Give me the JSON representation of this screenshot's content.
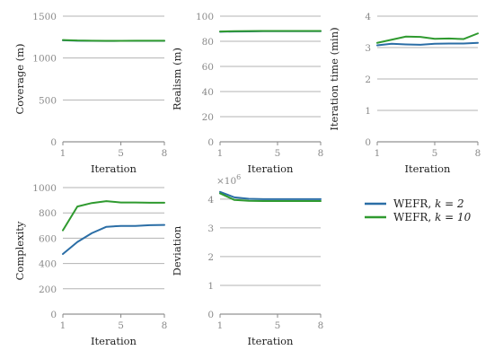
{
  "legend": {
    "entries": [
      {
        "label": "WEFR, ",
        "k_expr": "k = 2",
        "color": "#2b6ea6"
      },
      {
        "label": "WEFR, ",
        "k_expr": "k = 10",
        "color": "#2f9a2f"
      }
    ],
    "placement": "right of bottom-middle panel"
  },
  "chart_data": [
    {
      "type": "line",
      "ylabel": "Coverage (m)",
      "xlabel": "Iteration",
      "xlim": [
        1,
        8
      ],
      "xticks": [
        1,
        5,
        8
      ],
      "ylim": [
        0,
        1500
      ],
      "yticks": [
        0,
        500,
        1000,
        1500
      ],
      "grid": "horizontal",
      "x": [
        1,
        2,
        3,
        4,
        5,
        6,
        7,
        8
      ],
      "series": [
        {
          "name": "WEFR, k = 2",
          "color": "#2b6ea6",
          "values": [
            1212,
            1207,
            1205,
            1204,
            1205,
            1206,
            1205,
            1205
          ]
        },
        {
          "name": "WEFR, k = 10",
          "color": "#2f9a2f",
          "values": [
            1215,
            1209,
            1207,
            1206,
            1206,
            1207,
            1207,
            1207
          ]
        }
      ]
    },
    {
      "type": "line",
      "ylabel": "Realism (m)",
      "xlabel": "Iteration",
      "xlim": [
        1,
        8
      ],
      "xticks": [
        1,
        5,
        8
      ],
      "ylim": [
        0,
        100
      ],
      "yticks": [
        0,
        20,
        40,
        60,
        80,
        100
      ],
      "grid": "horizontal",
      "x": [
        1,
        2,
        3,
        4,
        5,
        6,
        7,
        8
      ],
      "series": [
        {
          "name": "WEFR, k = 2",
          "color": "#2b6ea6",
          "values": [
            87.6,
            87.8,
            87.9,
            88.0,
            88.0,
            88.0,
            88.0,
            88.0
          ]
        },
        {
          "name": "WEFR, k = 10",
          "color": "#2f9a2f",
          "values": [
            87.8,
            88.0,
            88.1,
            88.2,
            88.2,
            88.2,
            88.2,
            88.2
          ]
        }
      ]
    },
    {
      "type": "line",
      "ylabel": "Iteration time (min)",
      "xlabel": "Iteration",
      "xlim": [
        1,
        8
      ],
      "xticks": [
        1,
        5,
        8
      ],
      "ylim": [
        0,
        4
      ],
      "yticks": [
        0,
        1,
        2,
        3,
        4
      ],
      "grid": "horizontal",
      "x": [
        1,
        2,
        3,
        4,
        5,
        6,
        7,
        8
      ],
      "series": [
        {
          "name": "WEFR, k = 2",
          "color": "#2b6ea6",
          "values": [
            3.07,
            3.12,
            3.1,
            3.09,
            3.12,
            3.13,
            3.13,
            3.15
          ]
        },
        {
          "name": "WEFR, k = 10",
          "color": "#2f9a2f",
          "values": [
            3.15,
            3.25,
            3.35,
            3.34,
            3.28,
            3.29,
            3.27,
            3.45
          ]
        }
      ]
    },
    {
      "type": "line",
      "ylabel": "Complexity",
      "xlabel": "Iteration",
      "xlim": [
        1,
        8
      ],
      "xticks": [
        1,
        5,
        8
      ],
      "ylim": [
        0,
        1000
      ],
      "yticks": [
        0,
        200,
        400,
        600,
        800,
        1000
      ],
      "grid": "horizontal",
      "x": [
        1,
        2,
        3,
        4,
        5,
        6,
        7,
        8
      ],
      "series": [
        {
          "name": "WEFR, k = 2",
          "color": "#2b6ea6",
          "values": [
            475,
            570,
            640,
            690,
            697,
            697,
            703,
            705
          ]
        },
        {
          "name": "WEFR, k = 10",
          "color": "#2f9a2f",
          "values": [
            662,
            850,
            878,
            893,
            882,
            882,
            880,
            880
          ]
        }
      ]
    },
    {
      "type": "line",
      "ylabel": "Deviation",
      "xlabel": "Iteration",
      "xlim": [
        1,
        8
      ],
      "xticks": [
        1,
        5,
        8
      ],
      "ylim": [
        0,
        4.4
      ],
      "yticks": [
        0,
        1,
        2,
        3,
        4
      ],
      "y_scale_label": "×10",
      "y_scale_exp": "6",
      "grid": "horizontal",
      "x": [
        1,
        2,
        3,
        4,
        5,
        6,
        7,
        8
      ],
      "series": [
        {
          "name": "WEFR, k = 2",
          "color": "#2b6ea6",
          "values": [
            4.25,
            4.06,
            4.01,
            4.0,
            4.0,
            4.0,
            4.0,
            4.0
          ]
        },
        {
          "name": "WEFR, k = 10",
          "color": "#2f9a2f",
          "values": [
            4.2,
            3.97,
            3.94,
            3.93,
            3.93,
            3.93,
            3.93,
            3.93
          ]
        }
      ]
    }
  ]
}
